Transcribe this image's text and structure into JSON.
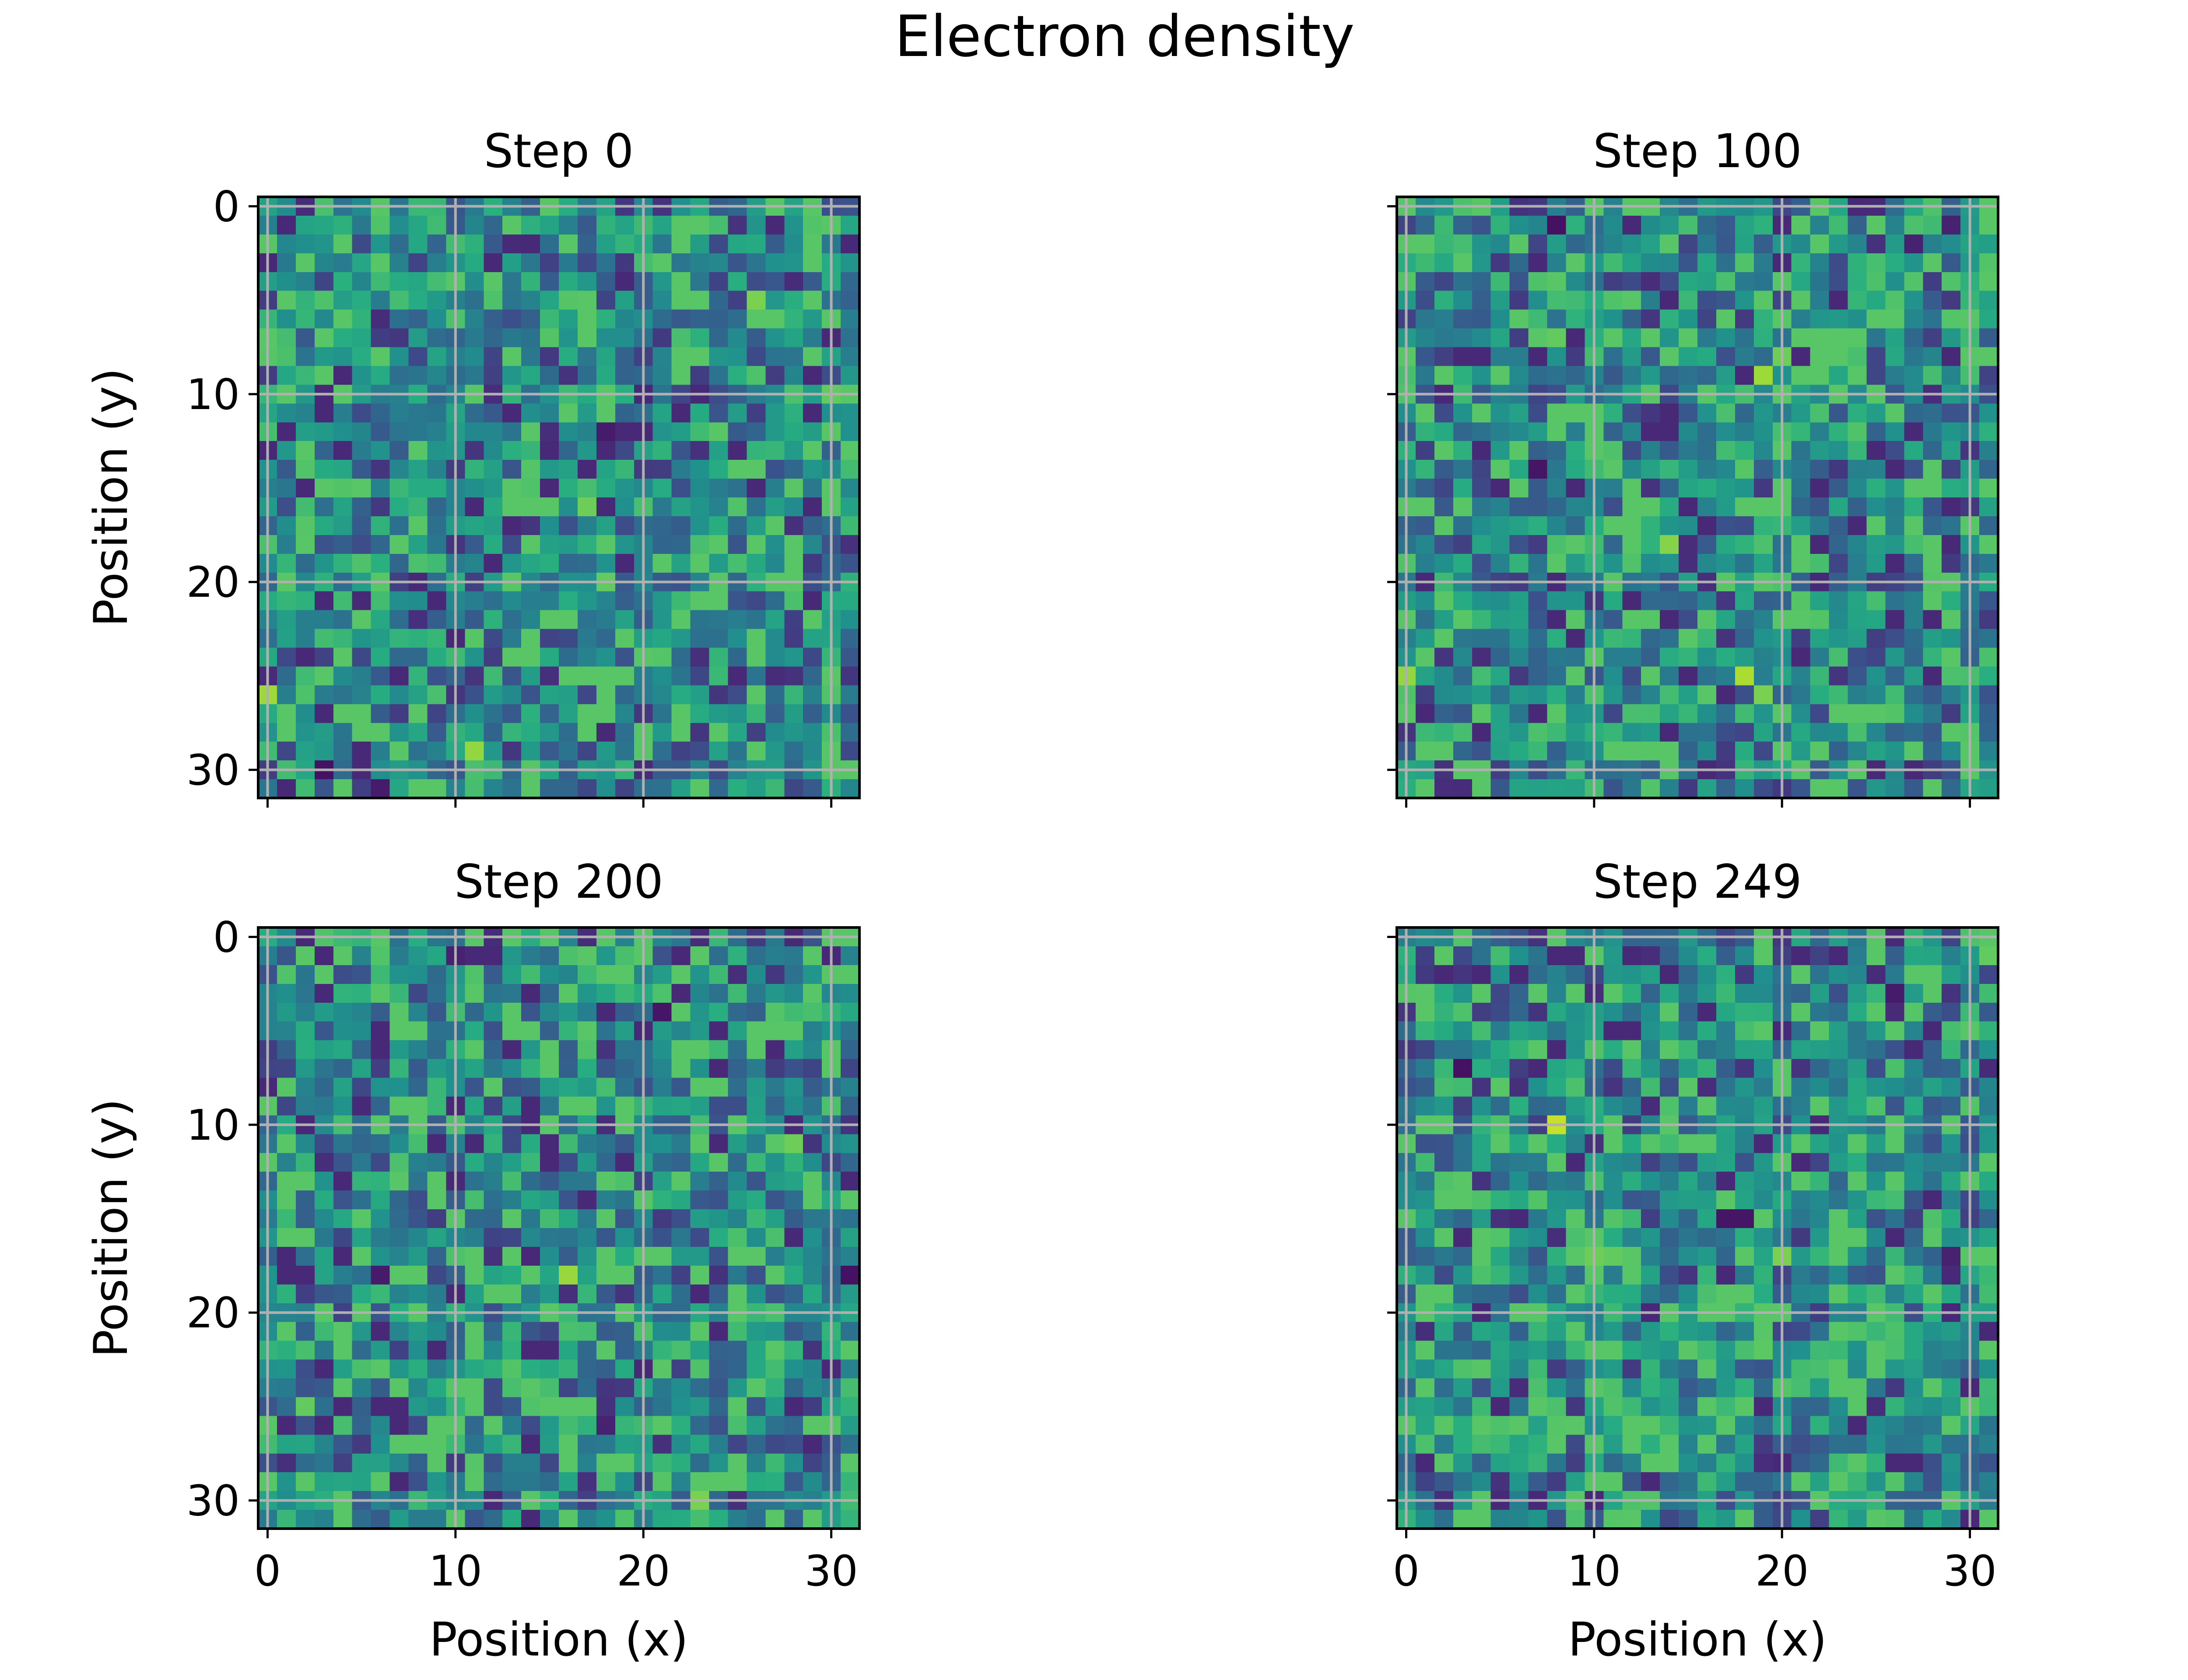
{
  "figure": {
    "title": "Electron density"
  },
  "chart_data": {
    "type": "heatmap",
    "title": "Electron density",
    "colormap": "viridis",
    "value_range": [
      0,
      1
    ],
    "grid": true,
    "grid_size": [
      32,
      32
    ],
    "xlim": [
      -0.5,
      31.5
    ],
    "ylim": [
      31.5,
      -0.5
    ],
    "x_ticks": [
      0,
      10,
      20,
      30
    ],
    "y_ticks": [
      0,
      10,
      20,
      30
    ],
    "panels": [
      {
        "title": "Step 0",
        "xlabel": "",
        "ylabel": "Position (y)",
        "show_x_tick_labels": false,
        "show_y_tick_labels": true,
        "matrix_note": "32x32 cells; values read visually ~0.25–0.85 on viridis scale",
        "notable_cells": [
          {
            "x": 0,
            "y": 26,
            "value": 0.86
          },
          {
            "x": 11,
            "y": 29,
            "value": 0.84
          },
          {
            "x": 26,
            "y": 5,
            "value": 0.8
          },
          {
            "x": 17,
            "y": 16,
            "value": 0.78
          },
          {
            "x": 18,
            "y": 20,
            "value": 0.76
          },
          {
            "x": 30,
            "y": 10,
            "value": 0.76
          },
          {
            "x": 15,
            "y": 16,
            "value": 0.74
          },
          {
            "x": 10,
            "y": 6,
            "value": 0.72
          },
          {
            "x": 3,
            "y": 30,
            "value": 0.05
          },
          {
            "x": 18,
            "y": 12,
            "value": 0.08
          },
          {
            "x": 6,
            "y": 31,
            "value": 0.08
          },
          {
            "x": 20,
            "y": 12,
            "value": 0.12
          }
        ]
      },
      {
        "title": "Step 100",
        "xlabel": "",
        "ylabel": "",
        "show_x_tick_labels": false,
        "show_y_tick_labels": false,
        "notable_cells": [
          {
            "x": 18,
            "y": 25,
            "value": 0.88
          },
          {
            "x": 19,
            "y": 9,
            "value": 0.86
          },
          {
            "x": 0,
            "y": 25,
            "value": 0.84
          },
          {
            "x": 14,
            "y": 18,
            "value": 0.82
          },
          {
            "x": 19,
            "y": 26,
            "value": 0.8
          },
          {
            "x": 20,
            "y": 8,
            "value": 0.78
          },
          {
            "x": 8,
            "y": 7,
            "value": 0.76
          },
          {
            "x": 7,
            "y": 4,
            "value": 0.72
          },
          {
            "x": 8,
            "y": 1,
            "value": 0.05
          },
          {
            "x": 7,
            "y": 14,
            "value": 0.06
          },
          {
            "x": 27,
            "y": 2,
            "value": 0.1
          },
          {
            "x": 29,
            "y": 1,
            "value": 0.1
          }
        ]
      },
      {
        "title": "Step 200",
        "xlabel": "Position (x)",
        "ylabel": "Position (y)",
        "show_x_tick_labels": true,
        "show_y_tick_labels": true,
        "notable_cells": [
          {
            "x": 16,
            "y": 18,
            "value": 0.85
          },
          {
            "x": 23,
            "y": 30,
            "value": 0.8
          },
          {
            "x": 28,
            "y": 11,
            "value": 0.78
          },
          {
            "x": 2,
            "y": 25,
            "value": 0.76
          },
          {
            "x": 9,
            "y": 14,
            "value": 0.74
          },
          {
            "x": 27,
            "y": 11,
            "value": 0.74
          },
          {
            "x": 23,
            "y": 23,
            "value": 0.72
          },
          {
            "x": 31,
            "y": 18,
            "value": 0.05
          },
          {
            "x": 21,
            "y": 4,
            "value": 0.06
          },
          {
            "x": 6,
            "y": 18,
            "value": 0.08
          },
          {
            "x": 18,
            "y": 26,
            "value": 0.1
          },
          {
            "x": 10,
            "y": 1,
            "value": 0.1
          }
        ]
      },
      {
        "title": "Step 249",
        "xlabel": "Position (x)",
        "ylabel": "",
        "show_x_tick_labels": true,
        "show_y_tick_labels": false,
        "notable_cells": [
          {
            "x": 8,
            "y": 10,
            "value": 0.92
          },
          {
            "x": 20,
            "y": 17,
            "value": 0.8
          },
          {
            "x": 10,
            "y": 17,
            "value": 0.78
          },
          {
            "x": 11,
            "y": 17,
            "value": 0.76
          },
          {
            "x": 31,
            "y": 1,
            "value": 0.76
          },
          {
            "x": 19,
            "y": 22,
            "value": 0.75
          },
          {
            "x": 4,
            "y": 14,
            "value": 0.72
          },
          {
            "x": 3,
            "y": 7,
            "value": 0.05
          },
          {
            "x": 17,
            "y": 15,
            "value": 0.06
          },
          {
            "x": 18,
            "y": 15,
            "value": 0.06
          },
          {
            "x": 26,
            "y": 3,
            "value": 0.08
          },
          {
            "x": 29,
            "y": 17,
            "value": 0.1
          }
        ]
      }
    ]
  }
}
